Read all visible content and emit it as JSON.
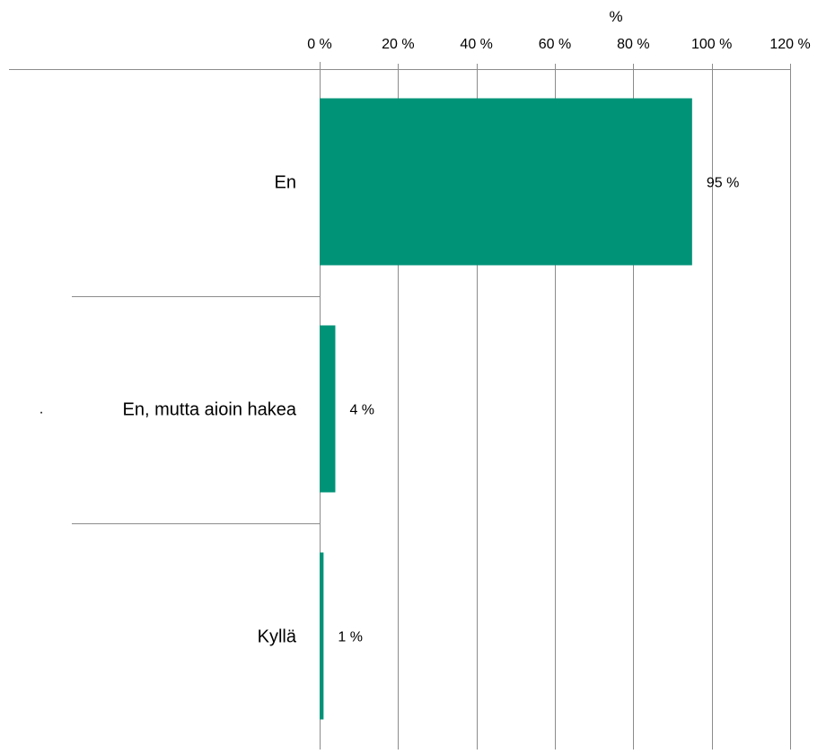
{
  "chart_data": {
    "type": "bar",
    "orientation": "horizontal",
    "title": "",
    "xlabel": "%",
    "ylabel": "",
    "categories": [
      "En",
      "En, mutta aioin hakea",
      "Kyllä"
    ],
    "values": [
      95,
      4,
      1
    ],
    "data_labels": [
      "95 %",
      "4 %",
      "1 %"
    ],
    "xlim": [
      0,
      120
    ],
    "x_ticks": [
      0,
      20,
      40,
      60,
      80,
      100,
      120
    ],
    "x_tick_labels": [
      "0 %",
      "20 %",
      "40 %",
      "60 %",
      "80 %",
      "100 %",
      "120 %"
    ],
    "x_axis_position": "top",
    "grid": true,
    "legend": "none",
    "stray_mark": "·",
    "colors": {
      "bar": "#009378",
      "grid": "#8c8c8c",
      "axis": "#8c8c8c",
      "text": "#000000"
    }
  }
}
